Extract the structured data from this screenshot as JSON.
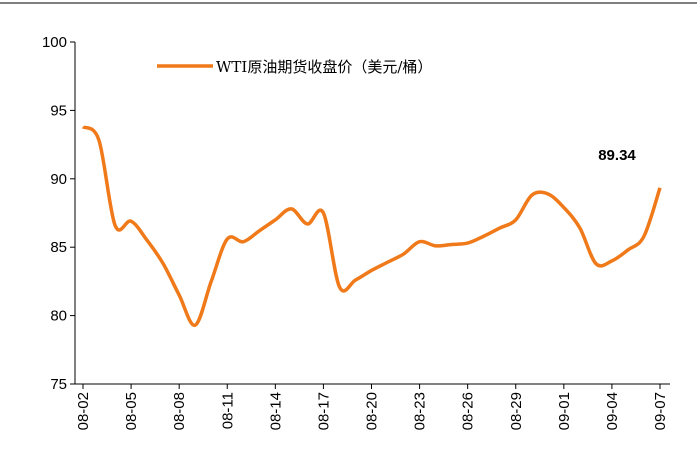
{
  "chart_data": {
    "type": "line",
    "legend": "top",
    "series": [
      {
        "name": "WTI原油期货收盘价（美元/桶）",
        "color": "#f07a1a",
        "values": [
          93.8,
          92.8,
          86.6,
          86.9,
          85.5,
          83.8,
          81.5,
          79.3,
          82.5,
          85.6,
          85.4,
          86.2,
          87.0,
          87.8,
          86.7,
          87.5,
          82.1,
          82.6,
          83.3,
          83.9,
          84.5,
          85.4,
          85.1,
          85.2,
          85.3,
          85.8,
          86.4,
          87.0,
          88.8,
          88.9,
          87.9,
          86.4,
          83.8,
          84.0,
          84.8,
          85.8,
          89.34
        ]
      }
    ],
    "categories": [
      "08-02",
      null,
      null,
      "08-05",
      null,
      null,
      "08-08",
      null,
      null,
      "08-11",
      null,
      null,
      "08-14",
      null,
      null,
      "08-17",
      null,
      null,
      "08-20",
      null,
      null,
      "08-23",
      null,
      null,
      "08-26",
      null,
      null,
      "08-29",
      null,
      null,
      "09-01",
      null,
      null,
      "09-04",
      null,
      null,
      "09-07"
    ],
    "annotations": [
      {
        "text": "89.34"
      }
    ],
    "ylim": [
      75,
      100
    ],
    "yticks": [
      75,
      80,
      85,
      90,
      95,
      100
    ]
  }
}
